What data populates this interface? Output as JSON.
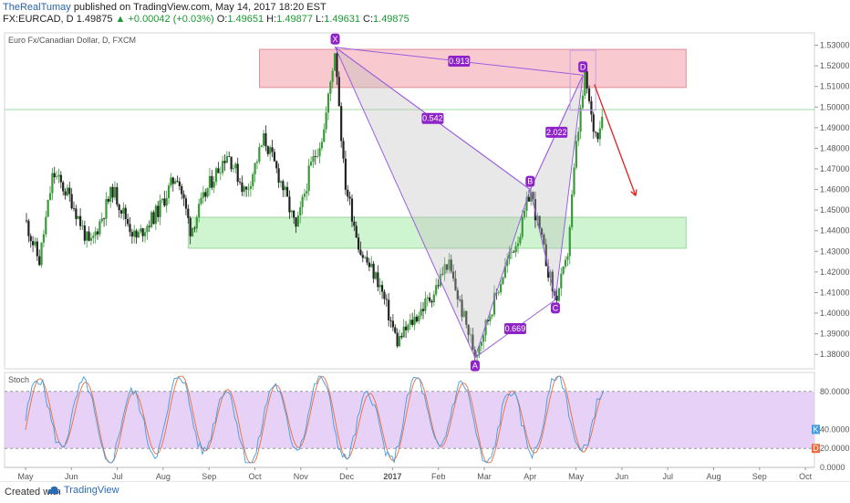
{
  "header": {
    "author": "TheRealTumay",
    "published": "published on TradingView.com, May 14, 2017 18:20 EST",
    "symbol": "FX:EURCAD, D",
    "last": "1.49875",
    "change": "+0.00042 (+0.03%)",
    "o_label": "O:",
    "o": "1.49651",
    "h_label": "H:",
    "h": "1.49877",
    "l_label": "L:",
    "l": "1.49631",
    "c_label": "C:",
    "c": "1.49875"
  },
  "footer": {
    "created": "Created with",
    "brand": "TradingView"
  },
  "colors": {
    "up": "#3a9a3a",
    "down": "#222222",
    "pattern": "#9a5fe0",
    "label_bg": "#8e24c8",
    "supply_zone": "#f5b7bd",
    "demand_zone": "#bff0c0",
    "stoch_k": "#3f9de0",
    "stoch_d": "#f06a3a",
    "stoch_band": "#e2c5f5",
    "projection_arrow": "#e02020"
  },
  "chart_data": [
    {
      "type": "candlestick",
      "title": "Euro Fx/Canadian Dollar, D, FXCM",
      "y_ticks": [
        "1.53000",
        "1.52000",
        "1.51000",
        "1.50000",
        "1.49000",
        "1.48000",
        "1.47000",
        "1.46000",
        "1.45000",
        "1.44000",
        "1.43000",
        "1.42000",
        "1.41000",
        "1.40000",
        "1.39000",
        "1.38000"
      ],
      "ylim": [
        1.373,
        1.536
      ],
      "x_ticks": [
        "May",
        "Jun",
        "Jul",
        "Aug",
        "Sep",
        "Oct",
        "Nov",
        "Dec",
        "2017",
        "Feb",
        "Mar",
        "Apr",
        "May",
        "Jun",
        "Jul",
        "Aug",
        "Sep",
        "Oct"
      ],
      "price_path": [
        {
          "m": 0,
          "p": 1.445
        },
        {
          "m": 0.3,
          "p": 1.425
        },
        {
          "m": 0.6,
          "p": 1.468
        },
        {
          "m": 1.0,
          "p": 1.455
        },
        {
          "m": 1.4,
          "p": 1.432
        },
        {
          "m": 1.9,
          "p": 1.46
        },
        {
          "m": 2.4,
          "p": 1.436
        },
        {
          "m": 2.9,
          "p": 1.45
        },
        {
          "m": 3.3,
          "p": 1.468
        },
        {
          "m": 3.6,
          "p": 1.44
        },
        {
          "m": 4.0,
          "p": 1.462
        },
        {
          "m": 4.4,
          "p": 1.478
        },
        {
          "m": 4.8,
          "p": 1.458
        },
        {
          "m": 5.2,
          "p": 1.485
        },
        {
          "m": 5.6,
          "p": 1.462
        },
        {
          "m": 5.9,
          "p": 1.44
        },
        {
          "m": 6.2,
          "p": 1.47
        },
        {
          "m": 6.5,
          "p": 1.488
        },
        {
          "m": 6.75,
          "p": 1.529
        },
        {
          "m": 6.95,
          "p": 1.465
        },
        {
          "m": 7.3,
          "p": 1.43
        },
        {
          "m": 7.7,
          "p": 1.415
        },
        {
          "m": 8.1,
          "p": 1.386
        },
        {
          "m": 8.5,
          "p": 1.398
        },
        {
          "m": 8.9,
          "p": 1.41
        },
        {
          "m": 9.2,
          "p": 1.425
        },
        {
          "m": 9.5,
          "p": 1.402
        },
        {
          "m": 9.8,
          "p": 1.38
        },
        {
          "m": 10.2,
          "p": 1.405
        },
        {
          "m": 10.5,
          "p": 1.425
        },
        {
          "m": 10.8,
          "p": 1.44
        },
        {
          "m": 11.0,
          "p": 1.46
        },
        {
          "m": 11.3,
          "p": 1.43
        },
        {
          "m": 11.55,
          "p": 1.406
        },
        {
          "m": 11.8,
          "p": 1.425
        },
        {
          "m": 12.0,
          "p": 1.48
        },
        {
          "m": 12.2,
          "p": 1.515
        },
        {
          "m": 12.35,
          "p": 1.492
        },
        {
          "m": 12.45,
          "p": 1.486
        },
        {
          "m": 12.6,
          "p": 1.499
        }
      ],
      "harmonic_pattern": {
        "points": [
          {
            "label": "X",
            "m": 6.75,
            "p": 1.529
          },
          {
            "label": "A",
            "m": 9.8,
            "p": 1.3785
          },
          {
            "label": "B",
            "m": 11.0,
            "p": 1.46
          },
          {
            "label": "C",
            "m": 11.55,
            "p": 1.4065
          },
          {
            "label": "D",
            "m": 12.15,
            "p": 1.5155
          }
        ],
        "ratios": [
          {
            "label": "0.913",
            "between": "X-D"
          },
          {
            "label": "0.542",
            "between": "X-B"
          },
          {
            "label": "0.669",
            "between": "A-C"
          },
          {
            "label": "2.022",
            "between": "B-D"
          }
        ]
      },
      "zones": [
        {
          "name": "supply",
          "from_m": 5.1,
          "to_m": 14.4,
          "low": 1.5095,
          "high": 1.528
        },
        {
          "name": "demand",
          "from_m": 3.55,
          "to_m": 14.4,
          "low": 1.4315,
          "high": 1.4465
        }
      ],
      "horizontal_line": 1.4988,
      "projection": {
        "from_m": 12.4,
        "from_p": 1.511,
        "to_m": 13.3,
        "to_p": 1.457
      }
    },
    {
      "type": "line",
      "title": "Stoch",
      "y_ticks": [
        "80.0000",
        "40.0000",
        "20.0000",
        "0.0000"
      ],
      "ylim": [
        0,
        100
      ],
      "band": [
        20,
        80
      ],
      "series": [
        {
          "name": "K",
          "last": "40.0000"
        },
        {
          "name": "D",
          "last": "20.0000"
        }
      ]
    }
  ]
}
